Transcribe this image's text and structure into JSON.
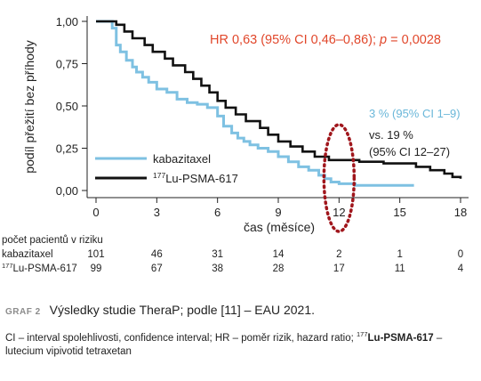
{
  "chart_data": {
    "type": "line",
    "title": "",
    "xlabel": "čas (měsíce)",
    "ylabel": "podíl přežití bez příhody",
    "xlim": [
      0,
      18
    ],
    "ylim": [
      0,
      1
    ],
    "xticks": [
      0,
      3,
      6,
      9,
      12,
      15,
      18
    ],
    "yticks": [
      "0,00",
      "0,25",
      "0,50",
      "0,75",
      "1,00"
    ],
    "grid": false,
    "legend_position": "lower-left",
    "series": [
      {
        "name": "kabazitaxel",
        "color": "#7ec1e2",
        "step": [
          [
            0,
            1.0
          ],
          [
            0.8,
            0.96
          ],
          [
            1.0,
            0.86
          ],
          [
            1.2,
            0.82
          ],
          [
            1.5,
            0.77
          ],
          [
            1.8,
            0.73
          ],
          [
            2.0,
            0.7
          ],
          [
            2.3,
            0.67
          ],
          [
            2.6,
            0.64
          ],
          [
            3.0,
            0.6
          ],
          [
            3.5,
            0.58
          ],
          [
            4.0,
            0.54
          ],
          [
            4.5,
            0.52
          ],
          [
            5.0,
            0.51
          ],
          [
            5.5,
            0.49
          ],
          [
            6.0,
            0.44
          ],
          [
            6.3,
            0.38
          ],
          [
            6.7,
            0.34
          ],
          [
            7.0,
            0.31
          ],
          [
            7.3,
            0.29
          ],
          [
            7.6,
            0.27
          ],
          [
            8.0,
            0.25
          ],
          [
            8.5,
            0.23
          ],
          [
            9.0,
            0.2
          ],
          [
            9.5,
            0.17
          ],
          [
            10.0,
            0.14
          ],
          [
            10.5,
            0.12
          ],
          [
            11.0,
            0.09
          ],
          [
            11.3,
            0.07
          ],
          [
            11.6,
            0.05
          ],
          [
            12.0,
            0.04
          ],
          [
            12.8,
            0.03
          ],
          [
            15.7,
            0.03
          ]
        ]
      },
      {
        "name": "177Lu-PSMA-617",
        "color": "#111111",
        "step": [
          [
            0,
            1.0
          ],
          [
            1.0,
            0.98
          ],
          [
            1.4,
            0.94
          ],
          [
            1.8,
            0.9
          ],
          [
            2.4,
            0.86
          ],
          [
            2.8,
            0.82
          ],
          [
            3.4,
            0.78
          ],
          [
            3.8,
            0.74
          ],
          [
            4.4,
            0.7
          ],
          [
            4.8,
            0.66
          ],
          [
            5.2,
            0.62
          ],
          [
            5.6,
            0.58
          ],
          [
            6.0,
            0.53
          ],
          [
            6.4,
            0.49
          ],
          [
            6.9,
            0.45
          ],
          [
            7.4,
            0.41
          ],
          [
            8.1,
            0.37
          ],
          [
            8.5,
            0.33
          ],
          [
            9.0,
            0.29
          ],
          [
            9.6,
            0.26
          ],
          [
            10.2,
            0.23
          ],
          [
            10.8,
            0.2
          ],
          [
            11.5,
            0.18
          ],
          [
            12.5,
            0.18
          ],
          [
            13.0,
            0.17
          ],
          [
            14.2,
            0.16
          ],
          [
            15.8,
            0.14
          ],
          [
            16.5,
            0.12
          ],
          [
            17.2,
            0.1
          ],
          [
            17.6,
            0.08
          ],
          [
            18.0,
            0.07
          ]
        ]
      }
    ],
    "annotations": {
      "hr_prefix": "HR 0,63 (95% CI 0,46–0,86); ",
      "hr_p": "p",
      "hr_suffix": " = 0,0028",
      "kaba_rate": "3 % (95% CI 1–9)",
      "lu_rate_1": "vs. 19 %",
      "lu_rate_2": "(95% CI 12–27)",
      "highlight_x": 12,
      "hr_color": "#e1472b",
      "kaba_color": "#6ab7d9",
      "ellipse_color": "#a0161c"
    },
    "risk_table": {
      "title": "počet pacientů v riziku",
      "rows": [
        {
          "label": "kabazitaxel",
          "values": [
            "101",
            "46",
            "31",
            "14",
            "2",
            "1",
            "0"
          ]
        },
        {
          "label": "177Lu-PSMA-617",
          "values": [
            "99",
            "67",
            "38",
            "28",
            "17",
            "11",
            "4"
          ]
        }
      ]
    }
  },
  "legend": {
    "kaba": "kabazitaxel",
    "lu_sup": "177",
    "lu_rest": "Lu-PSMA-617"
  },
  "caption": {
    "label": "GRAF 2",
    "title": "Výsledky studie TheraP; podle [11] – EAU 2021.",
    "note_plain_1": "CI – interval spolehlivosti, confidence interval; HR – poměr rizik, hazard ratio; ",
    "note_sup": "177",
    "note_bold": "Lu-PSMA-617",
    "note_plain_2": " – lutecium vipivotid tetraxetan"
  }
}
